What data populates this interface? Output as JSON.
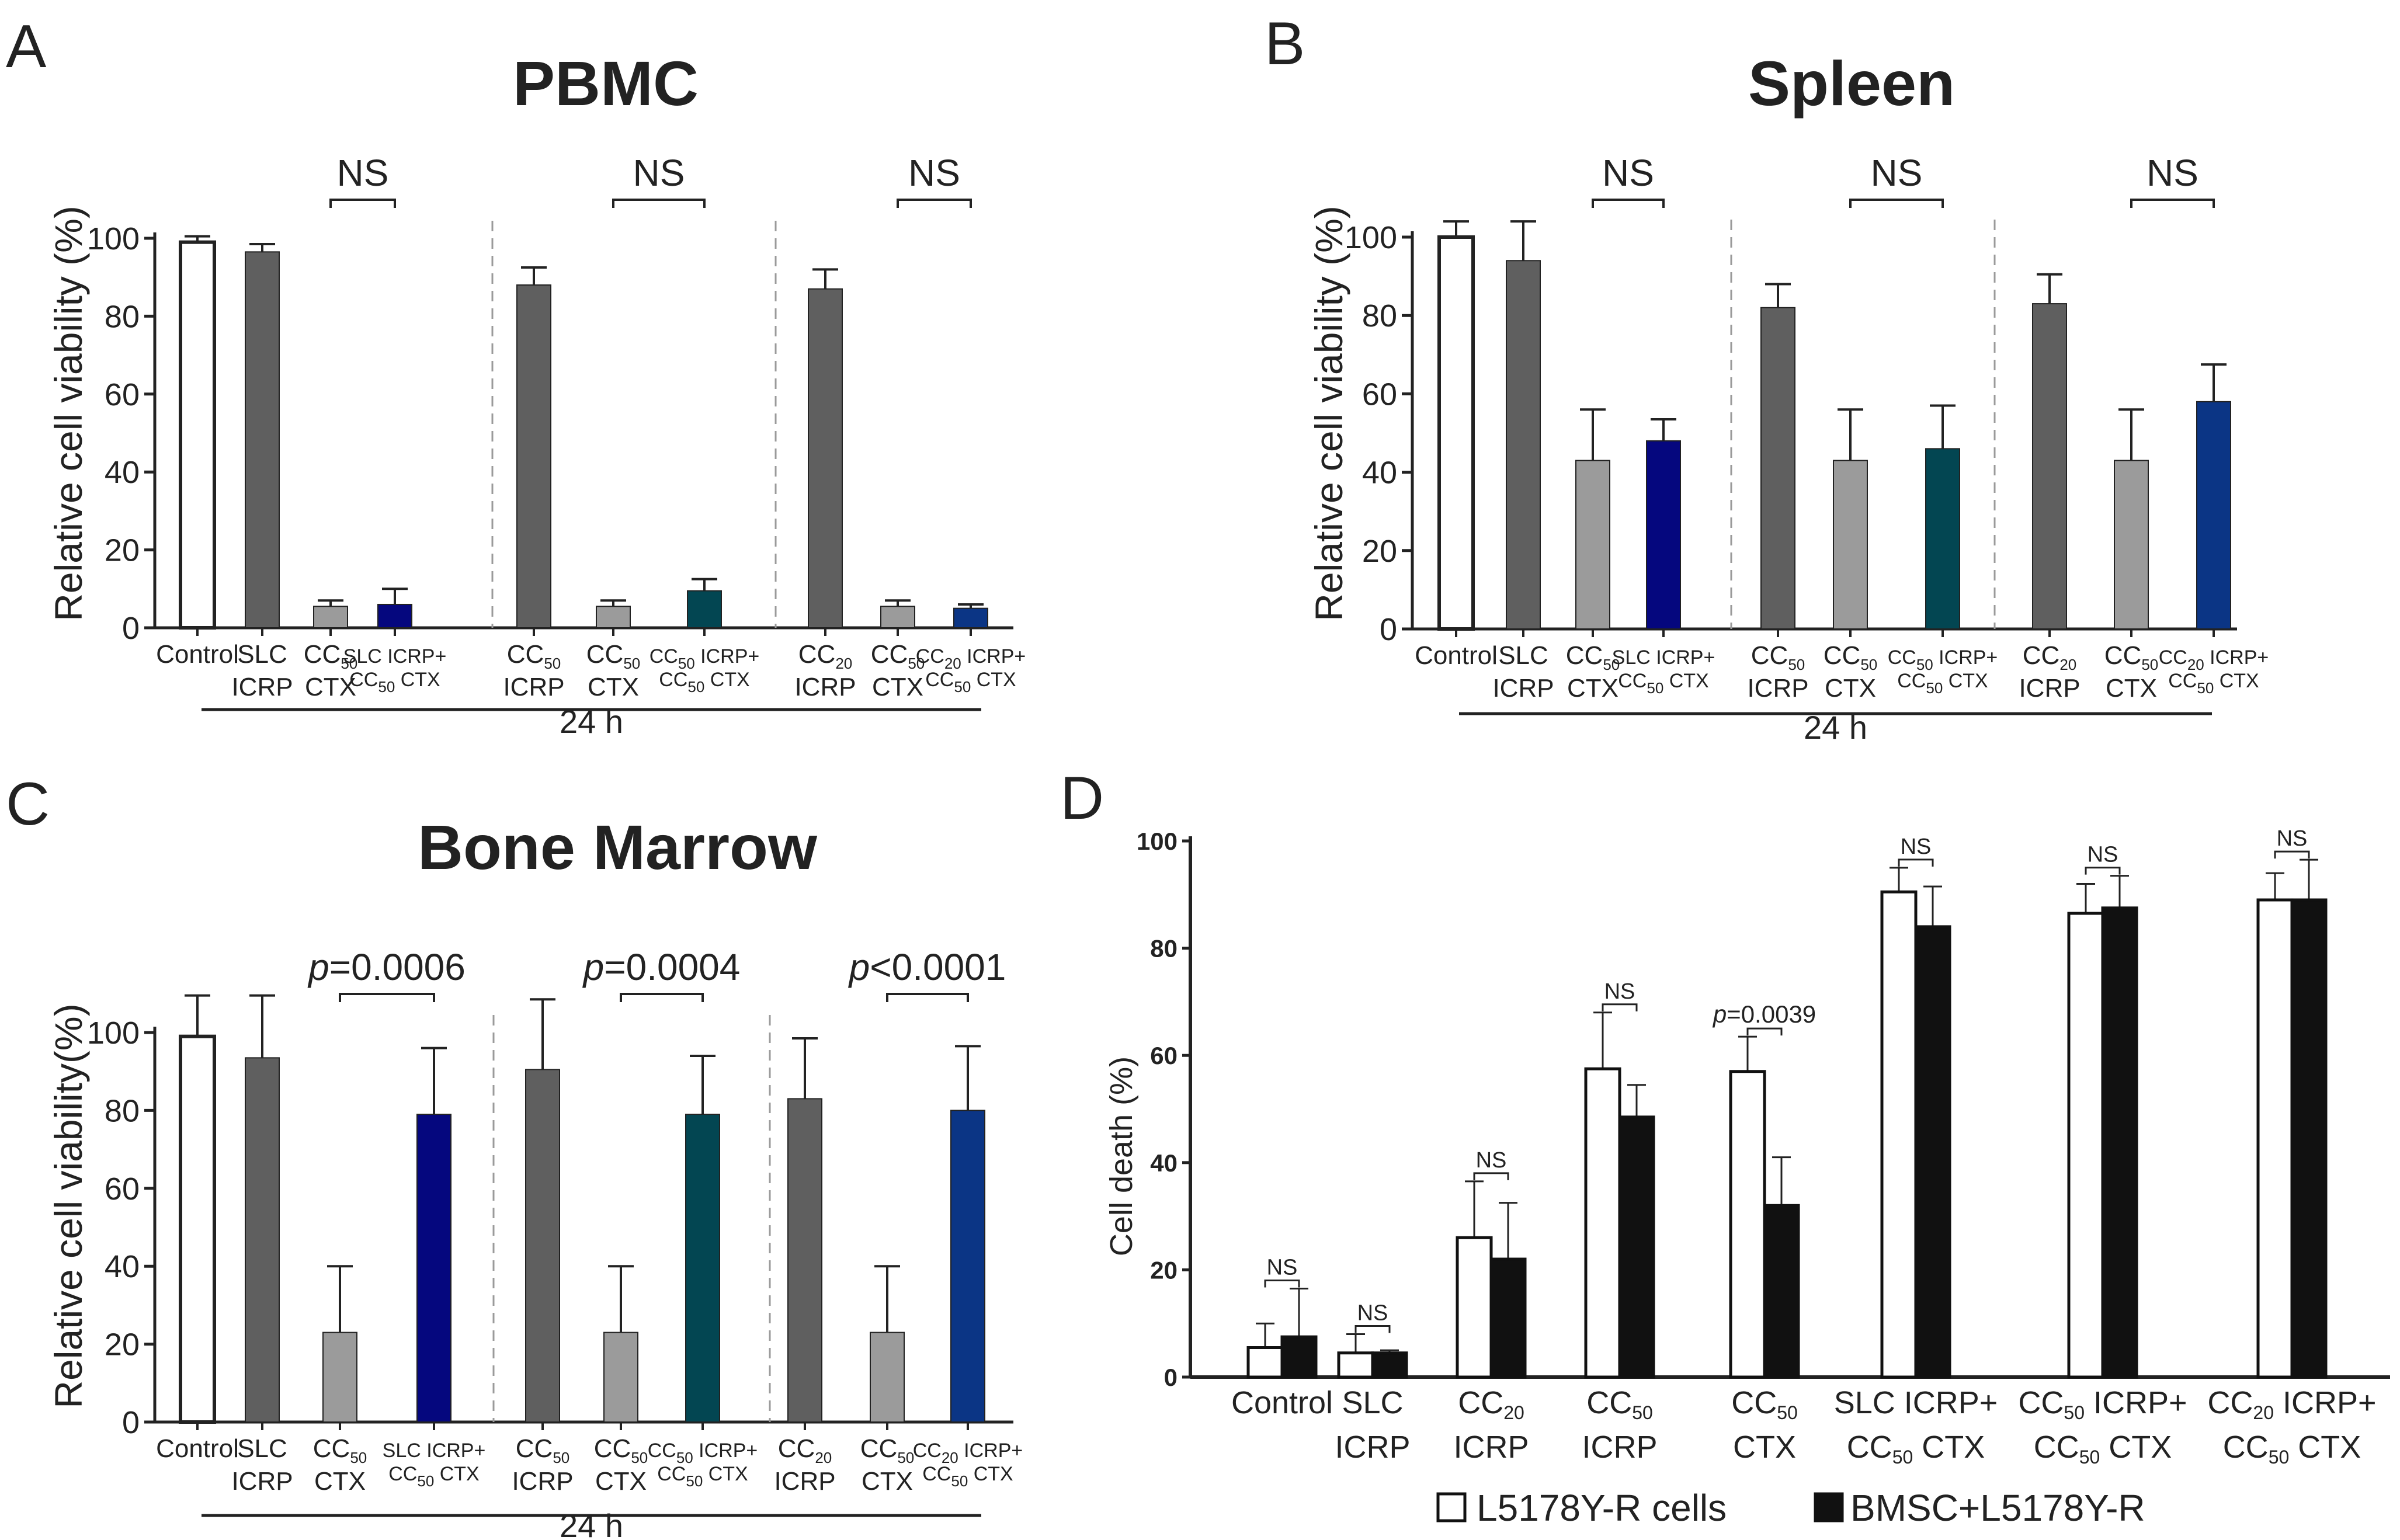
{
  "colors": {
    "control": "#ffffff",
    "dark_gray": "#5f5f5f",
    "light_gray": "#9b9b9b",
    "navy": "#05077e",
    "teal": "#034652",
    "blue": "#0b3585",
    "axis": "#222222",
    "white_bar": "#ffffff",
    "black_bar": "#111111"
  },
  "chart_data": [
    {
      "panel": "A",
      "title": "PBMC",
      "type": "bar",
      "ylabel": "Relative cell viability (%)",
      "ylim": [
        0,
        100
      ],
      "yticks": [
        "0",
        "20",
        "40",
        "60",
        "80",
        "100"
      ],
      "categories": [
        {
          "main": "Control"
        },
        {
          "main": "SLC",
          "line2": "ICRP"
        },
        {
          "main": "CC",
          "sub": "50",
          "line2": "CTX"
        },
        {
          "main": "SLC ICRP+",
          "line2": "CC",
          "sub2": "50",
          "tail2": " CTX"
        },
        {
          "main": "CC",
          "sub": "50",
          "line2": "ICRP"
        },
        {
          "main": "CC",
          "sub": "50",
          "line2": "CTX"
        },
        {
          "main": "CC",
          "sub": "50",
          "tail": " ICRP+",
          "line2": "CC",
          "sub2": "50",
          "tail2": " CTX"
        },
        {
          "main": "CC",
          "sub": "20",
          "line2": "ICRP"
        },
        {
          "main": "CC",
          "sub": "50",
          "line2": "CTX"
        },
        {
          "main": "CC",
          "sub": "20",
          "tail": " ICRP+",
          "line2": "CC",
          "sub2": "50",
          "tail2": " CTX"
        }
      ],
      "values": [
        99,
        96.5,
        5.5,
        6,
        88,
        5.5,
        9.5,
        87,
        5.5,
        5
      ],
      "errors": [
        1.5,
        2,
        1.5,
        4,
        4.5,
        1.5,
        3,
        5,
        1.5,
        1
      ],
      "bar_colors": [
        "control",
        "dark_gray",
        "light_gray",
        "navy",
        "dark_gray",
        "light_gray",
        "teal",
        "dark_gray",
        "light_gray",
        "blue"
      ],
      "significance": [
        "NS",
        "NS",
        "NS"
      ],
      "time_label": "24 h"
    },
    {
      "panel": "B",
      "title": "Spleen",
      "type": "bar",
      "ylabel": "Relative cell viability (%)",
      "ylim": [
        0,
        100
      ],
      "yticks": [
        "0",
        "20",
        "40",
        "60",
        "80",
        "100"
      ],
      "categories": [
        {
          "main": "Control"
        },
        {
          "main": "SLC",
          "line2": "ICRP"
        },
        {
          "main": "CC",
          "sub": "50",
          "line2": "CTX"
        },
        {
          "main": "SLC ICRP+",
          "line2": "CC",
          "sub2": "50",
          "tail2": " CTX"
        },
        {
          "main": "CC",
          "sub": "50",
          "line2": "ICRP"
        },
        {
          "main": "CC",
          "sub": "50",
          "line2": "CTX"
        },
        {
          "main": "CC",
          "sub": "50",
          "tail": " ICRP+",
          "line2": "CC",
          "sub2": "50",
          "tail2": " CTX"
        },
        {
          "main": "CC",
          "sub": "20",
          "line2": "ICRP"
        },
        {
          "main": "CC",
          "sub": "50",
          "line2": "CTX"
        },
        {
          "main": "CC",
          "sub": "20",
          "tail": " ICRP+",
          "line2": "CC",
          "sub2": "50",
          "tail2": " CTX"
        }
      ],
      "values": [
        100,
        94,
        43,
        48,
        82,
        43,
        46,
        83,
        43,
        58
      ],
      "errors": [
        4,
        10,
        13,
        5.5,
        6,
        13,
        11,
        7.5,
        13,
        9.5
      ],
      "bar_colors": [
        "control",
        "dark_gray",
        "light_gray",
        "navy",
        "dark_gray",
        "light_gray",
        "teal",
        "dark_gray",
        "light_gray",
        "blue"
      ],
      "significance": [
        "NS",
        "NS",
        "NS"
      ],
      "time_label": "24 h"
    },
    {
      "panel": "C",
      "title": "Bone Marrow",
      "type": "bar",
      "ylabel": "Relative cell viability(%)",
      "ylim": [
        0,
        100
      ],
      "yticks": [
        "0",
        "20",
        "40",
        "60",
        "80",
        "100"
      ],
      "categories": [
        {
          "main": "Control"
        },
        {
          "main": "SLC",
          "line2": "ICRP"
        },
        {
          "main": "CC",
          "sub": "50",
          "line2": "CTX"
        },
        {
          "main": "SLC ICRP+",
          "line2": "CC",
          "sub2": "50",
          "tail2": " CTX"
        },
        {
          "main": "CC",
          "sub": "50",
          "line2": "ICRP"
        },
        {
          "main": "CC",
          "sub": "50",
          "line2": "CTX"
        },
        {
          "main": "CC",
          "sub": "50",
          "tail": " ICRP+",
          "line2": "CC",
          "sub2": "50",
          "tail2": " CTX"
        },
        {
          "main": "CC",
          "sub": "20",
          "line2": "ICRP"
        },
        {
          "main": "CC",
          "sub": "50",
          "line2": "CTX"
        },
        {
          "main": "CC",
          "sub": "20",
          "tail": " ICRP+",
          "line2": "CC",
          "sub2": "50",
          "tail2": " CTX"
        }
      ],
      "values": [
        99,
        93.5,
        23,
        79,
        90.5,
        23,
        79,
        83,
        23,
        80
      ],
      "errors": [
        10.5,
        16,
        17,
        17,
        18,
        17,
        15,
        15.5,
        17,
        16.5
      ],
      "bar_colors": [
        "control",
        "dark_gray",
        "light_gray",
        "navy",
        "dark_gray",
        "light_gray",
        "teal",
        "dark_gray",
        "light_gray",
        "blue"
      ],
      "significance": [
        {
          "p": "p",
          "rest": "=0.0006"
        },
        {
          "p": "p",
          "rest": "=0.0004"
        },
        {
          "p": "p",
          "rest": "<0.0001"
        }
      ],
      "time_label": "24 h"
    },
    {
      "panel": "D",
      "title": "",
      "type": "bar",
      "ylabel": "Cell death (%)",
      "ylim": [
        0,
        100
      ],
      "yticks": [
        "0",
        "20",
        "40",
        "60",
        "80",
        "100"
      ],
      "categories": [
        {
          "main": "Control"
        },
        {
          "main": "SLC",
          "line2": "ICRP"
        },
        {
          "main": "CC",
          "sub": "20",
          "line2": "ICRP"
        },
        {
          "main": "CC",
          "sub": "50",
          "line2": "ICRP"
        },
        {
          "main": "CC",
          "sub": "50",
          "line2": "CTX"
        },
        {
          "main": "SLC ICRP+",
          "line2": "CC",
          "sub2": "50",
          "tail2": " CTX"
        },
        {
          "main": "CC",
          "sub": "50",
          "tail": " ICRP+",
          "line2": "CC",
          "sub2": "50",
          "tail2": " CTX"
        },
        {
          "main": "CC",
          "sub": "20",
          "tail": " ICRP+",
          "line2": "CC",
          "sub2": "50",
          "tail2": " CTX"
        }
      ],
      "series": [
        {
          "name": "L5178Y-R cells",
          "color": "white_bar",
          "values": [
            5.5,
            4.5,
            26,
            57.5,
            57,
            90.5,
            86.5,
            89
          ],
          "errors": [
            4.5,
            3.5,
            10.5,
            10.5,
            6.5,
            4.5,
            5.5,
            5
          ]
        },
        {
          "name": "BMSC+L5178Y-R",
          "color": "black_bar",
          "values": [
            7.5,
            4.5,
            22,
            48.5,
            32,
            84,
            87.5,
            89
          ],
          "errors": [
            9,
            0.5,
            10.5,
            6,
            9,
            7.5,
            6,
            7.5
          ]
        }
      ],
      "significance": [
        "NS",
        "NS",
        "NS",
        "NS",
        {
          "p": "p",
          "rest": "=0.0039"
        },
        "NS",
        "NS",
        "NS"
      ],
      "legend": [
        "L5178Y-R cells",
        "BMSC+L5178Y-R"
      ],
      "legend_position": "bottom"
    }
  ]
}
